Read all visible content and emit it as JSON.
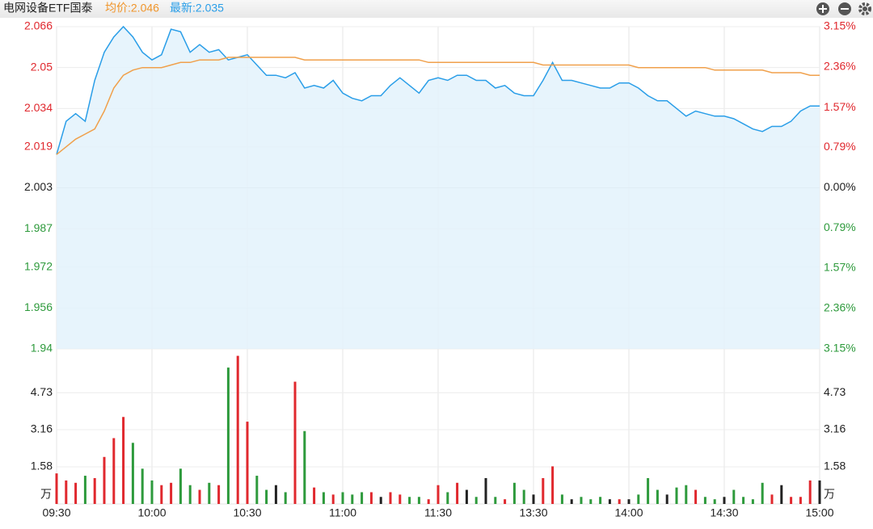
{
  "header": {
    "title": "电网设备ETF国泰",
    "avg_label": "均价:2.046",
    "last_label": "最新:2.035"
  },
  "chart_data": [
    {
      "type": "line",
      "x": [
        0,
        3,
        6,
        9,
        12,
        15,
        18,
        21,
        24,
        27,
        30,
        33,
        36,
        39,
        42,
        45,
        48,
        51,
        54,
        57,
        60,
        63,
        66,
        69,
        72,
        75,
        78,
        81,
        84,
        87,
        90,
        93,
        96,
        99,
        102,
        105,
        108,
        111,
        114,
        117,
        120,
        123,
        126,
        129,
        132,
        135,
        138,
        141,
        144,
        147,
        150,
        153,
        156,
        159,
        162,
        165,
        168,
        171,
        174,
        177,
        180,
        183,
        186,
        189,
        192,
        195,
        198,
        201,
        204,
        207,
        210,
        213,
        216,
        219,
        222,
        225,
        228,
        231,
        234,
        237,
        240
      ],
      "xlim": [
        0,
        240
      ],
      "series": [
        {
          "color": "#2a9ee8",
          "fill": "#e3f2fc",
          "values": [
            2.016,
            2.029,
            2.032,
            2.029,
            2.045,
            2.056,
            2.062,
            2.066,
            2.062,
            2.056,
            2.053,
            2.055,
            2.065,
            2.064,
            2.056,
            2.059,
            2.056,
            2.057,
            2.053,
            2.054,
            2.055,
            2.051,
            2.047,
            2.047,
            2.046,
            2.048,
            2.042,
            2.043,
            2.042,
            2.045,
            2.04,
            2.038,
            2.037,
            2.039,
            2.039,
            2.043,
            2.046,
            2.043,
            2.04,
            2.045,
            2.046,
            2.045,
            2.047,
            2.047,
            2.045,
            2.045,
            2.042,
            2.043,
            2.04,
            2.039,
            2.039,
            2.045,
            2.052,
            2.045,
            2.045,
            2.044,
            2.043,
            2.042,
            2.042,
            2.044,
            2.044,
            2.042,
            2.039,
            2.037,
            2.037,
            2.034,
            2.031,
            2.033,
            2.032,
            2.031,
            2.031,
            2.03,
            2.028,
            2.026,
            2.025,
            2.027,
            2.027,
            2.029,
            2.033,
            2.035,
            2.035
          ]
        },
        {
          "color": "#f0a04b",
          "values": [
            2.016,
            2.019,
            2.022,
            2.024,
            2.026,
            2.033,
            2.042,
            2.047,
            2.049,
            2.05,
            2.05,
            2.05,
            2.051,
            2.052,
            2.052,
            2.053,
            2.053,
            2.053,
            2.054,
            2.054,
            2.054,
            2.054,
            2.054,
            2.054,
            2.054,
            2.054,
            2.053,
            2.053,
            2.053,
            2.053,
            2.053,
            2.053,
            2.053,
            2.053,
            2.053,
            2.053,
            2.053,
            2.053,
            2.053,
            2.052,
            2.052,
            2.052,
            2.052,
            2.052,
            2.052,
            2.052,
            2.052,
            2.052,
            2.052,
            2.052,
            2.052,
            2.051,
            2.051,
            2.051,
            2.051,
            2.051,
            2.051,
            2.051,
            2.051,
            2.051,
            2.051,
            2.05,
            2.05,
            2.05,
            2.05,
            2.05,
            2.05,
            2.05,
            2.05,
            2.049,
            2.049,
            2.049,
            2.049,
            2.049,
            2.049,
            2.048,
            2.048,
            2.048,
            2.048,
            2.047,
            2.047
          ]
        }
      ],
      "ylim": [
        1.94,
        2.066
      ],
      "yticks": [
        2.066,
        2.05,
        2.034,
        2.019,
        2.003,
        1.987,
        1.972,
        1.956,
        1.94
      ],
      "y2lim": [
        -3.15,
        3.15
      ],
      "y2ticks": [
        {
          "value": 3.15,
          "label": "3.15%"
        },
        {
          "value": 2.36,
          "label": "2.36%"
        },
        {
          "value": 1.57,
          "label": "1.57%"
        },
        {
          "value": 0.79,
          "label": "0.79%"
        },
        {
          "value": 0,
          "label": "0.00%"
        },
        {
          "value": -0.79,
          "label": "0.79%"
        },
        {
          "value": -1.57,
          "label": "1.57%"
        },
        {
          "value": -2.36,
          "label": "2.36%"
        },
        {
          "value": -3.15,
          "label": "3.15%"
        }
      ],
      "up_color": "#e0282e",
      "down_color": "#2e9a3c",
      "flat_color": "#222222",
      "grid": true
    },
    {
      "type": "bar",
      "x": [
        0,
        3,
        6,
        9,
        12,
        15,
        18,
        21,
        24,
        27,
        30,
        33,
        36,
        39,
        42,
        45,
        48,
        51,
        54,
        57,
        60,
        63,
        66,
        69,
        72,
        75,
        78,
        81,
        84,
        87,
        90,
        93,
        96,
        99,
        102,
        105,
        108,
        111,
        114,
        117,
        120,
        123,
        126,
        129,
        132,
        135,
        138,
        141,
        144,
        147,
        150,
        153,
        156,
        159,
        162,
        165,
        168,
        171,
        174,
        177,
        180,
        183,
        186,
        189,
        192,
        195,
        198,
        201,
        204,
        207,
        210,
        213,
        216,
        219,
        222,
        225,
        228,
        231,
        234,
        237,
        240
      ],
      "values": [
        1.3,
        1.0,
        0.9,
        1.2,
        1.1,
        2.0,
        2.8,
        3.7,
        2.6,
        1.5,
        1.0,
        0.8,
        0.9,
        1.5,
        0.8,
        0.6,
        0.9,
        0.8,
        5.8,
        6.3,
        3.5,
        1.2,
        0.6,
        0.8,
        0.5,
        5.2,
        3.1,
        0.7,
        0.5,
        0.4,
        0.5,
        0.4,
        0.5,
        0.5,
        0.3,
        0.5,
        0.4,
        0.3,
        0.3,
        0.2,
        0.8,
        0.5,
        0.9,
        0.6,
        0.3,
        1.1,
        0.3,
        0.2,
        0.9,
        0.6,
        0.4,
        1.1,
        1.6,
        0.4,
        0.2,
        0.3,
        0.2,
        0.3,
        0.2,
        0.2,
        0.2,
        0.4,
        1.1,
        0.6,
        0.4,
        0.7,
        0.8,
        0.6,
        0.3,
        0.2,
        0.3,
        0.6,
        0.3,
        0.2,
        0.9,
        0.4,
        0.8,
        0.3,
        0.3,
        1.0,
        1.0
      ],
      "xlim": [
        0,
        240
      ],
      "xticks": [
        {
          "value": 0,
          "label": "09:30"
        },
        {
          "value": 30,
          "label": "10:00"
        },
        {
          "value": 60,
          "label": "10:30"
        },
        {
          "value": 90,
          "label": "11:00"
        },
        {
          "value": 120,
          "label": "11:30"
        },
        {
          "value": 150,
          "label": "13:30"
        },
        {
          "value": 180,
          "label": "14:00"
        },
        {
          "value": 210,
          "label": "14:30"
        },
        {
          "value": 240,
          "label": "15:00"
        }
      ],
      "ylim": [
        0,
        6.32
      ],
      "yticks": [
        1.58,
        3.16,
        4.73
      ],
      "y_unit": "万",
      "grid": true
    }
  ]
}
